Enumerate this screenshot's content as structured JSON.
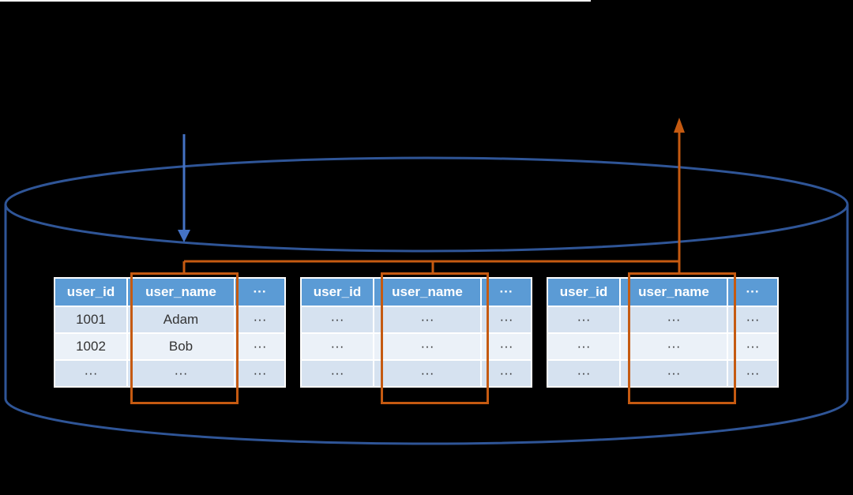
{
  "colors": {
    "background": "#000000",
    "top_edge_line": "#FFFFFF",
    "cylinder_stroke": "#2F5597",
    "insert_arrow": "#4472C4",
    "highlight": "#C55A11",
    "table_header_bg": "#5B9BD5",
    "table_header_text": "#FFFFFF",
    "row_odd_bg": "#D6E2F0",
    "row_even_bg": "#EBF1F8",
    "cell_text": "#333333",
    "table_gap": "#FFFFFF"
  },
  "icons": {
    "database_cylinder": "database-cylinder-shape",
    "insert_arrow": "↓",
    "retrieve_arrow": "↑"
  },
  "tables": [
    {
      "name": "shard-table-1",
      "headers": [
        "user_id",
        "user_name",
        "···"
      ],
      "rows": [
        [
          "1001",
          "Adam",
          "···"
        ],
        [
          "1002",
          "Bob",
          "···"
        ],
        [
          "···",
          "···",
          "···"
        ]
      ],
      "highlighted_column": "user_name"
    },
    {
      "name": "shard-table-2",
      "headers": [
        "user_id",
        "user_name",
        "···"
      ],
      "rows": [
        [
          "···",
          "···",
          "···"
        ],
        [
          "···",
          "···",
          "···"
        ],
        [
          "···",
          "···",
          "···"
        ]
      ],
      "highlighted_column": "user_name"
    },
    {
      "name": "shard-table-3",
      "headers": [
        "user_id",
        "user_name",
        "···"
      ],
      "rows": [
        [
          "···",
          "···",
          "···"
        ],
        [
          "···",
          "···",
          "···"
        ],
        [
          "···",
          "···",
          "···"
        ]
      ],
      "highlighted_column": "user_name"
    }
  ]
}
